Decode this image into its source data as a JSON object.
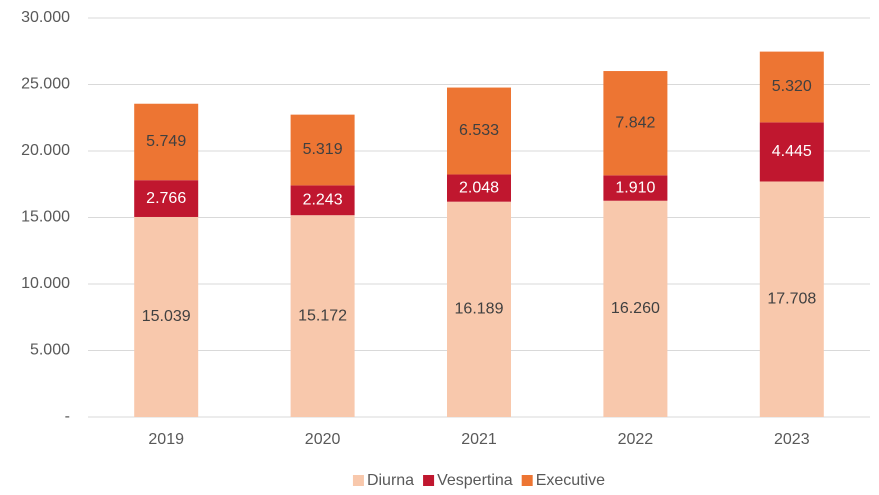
{
  "chart_data": {
    "type": "stacked_bar",
    "categories": [
      "2019",
      "2020",
      "2021",
      "2022",
      "2023"
    ],
    "series": [
      {
        "name": "Diurna",
        "color": "#f8c8ac",
        "label_color": "#404040",
        "values": [
          15039,
          15172,
          16189,
          16260,
          17708
        ],
        "value_labels": [
          "15.039",
          "15.172",
          "16.189",
          "16.260",
          "17.708"
        ]
      },
      {
        "name": "Vespertina",
        "color": "#c0172f",
        "label_color": "#ffffff",
        "values": [
          2766,
          2243,
          2048,
          1910,
          4445
        ],
        "value_labels": [
          "2.766",
          "2.243",
          "2.048",
          "1.910",
          "4.445"
        ]
      },
      {
        "name": "Executive",
        "color": "#ed7533",
        "label_color": "#404040",
        "values": [
          5749,
          5319,
          6533,
          7842,
          5320
        ],
        "value_labels": [
          "5.749",
          "5.319",
          "6.533",
          "7.842",
          "5.320"
        ]
      }
    ],
    "ylim": [
      0,
      30000
    ],
    "yticks": [
      {
        "value": 0,
        "label": "-"
      },
      {
        "value": 5000,
        "label": "5.000"
      },
      {
        "value": 10000,
        "label": "10.000"
      },
      {
        "value": 15000,
        "label": "15.000"
      },
      {
        "value": 20000,
        "label": "20.000"
      },
      {
        "value": 25000,
        "label": "25.000"
      },
      {
        "value": 30000,
        "label": "30.000"
      }
    ],
    "grid": true,
    "legend": "bottom"
  }
}
